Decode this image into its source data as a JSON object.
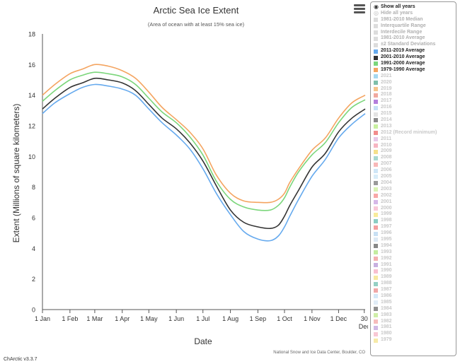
{
  "chart_data": {
    "type": "line",
    "title": "Arctic Sea Ice Extent",
    "subtitle": "(Area of ocean with at least 15% sea ice)",
    "xlabel": "Date",
    "ylabel": "Extent (Millions of square kilometers)",
    "ylim": [
      0,
      18
    ],
    "yticks": [
      0,
      2,
      4,
      6,
      8,
      10,
      12,
      14,
      16,
      18
    ],
    "xlim": [
      1,
      365
    ],
    "x_ticks": [
      {
        "day": 1,
        "label": "1 Jan"
      },
      {
        "day": 32,
        "label": "1 Feb"
      },
      {
        "day": 60,
        "label": "1 Mar"
      },
      {
        "day": 91,
        "label": "1 Apr"
      },
      {
        "day": 121,
        "label": "1 May"
      },
      {
        "day": 152,
        "label": "1 Jun"
      },
      {
        "day": 182,
        "label": "1 Jul"
      },
      {
        "day": 213,
        "label": "1 Aug"
      },
      {
        "day": 244,
        "label": "1 Sep"
      },
      {
        "day": 274,
        "label": "1 Oct"
      },
      {
        "day": 305,
        "label": "1 Nov"
      },
      {
        "day": 335,
        "label": "1 Dec"
      },
      {
        "day": 364,
        "label": "30",
        "label2": "Dec"
      }
    ],
    "grid": false,
    "credit": "National Snow and Ice Data Center, Boulder, CO",
    "series": [
      {
        "name": "1979-1990 Average",
        "color": "#f4a460",
        "x": [
          1,
          15,
          32,
          46,
          60,
          75,
          91,
          106,
          121,
          136,
          152,
          167,
          182,
          197,
          213,
          228,
          244,
          258,
          267,
          274,
          280,
          290,
          305,
          320,
          335,
          350,
          365
        ],
        "y": [
          14.0,
          14.7,
          15.4,
          15.7,
          16.0,
          15.9,
          15.6,
          15.1,
          14.2,
          13.2,
          12.4,
          11.6,
          10.5,
          8.8,
          7.6,
          7.1,
          7.0,
          7.0,
          7.2,
          7.6,
          8.3,
          9.2,
          10.4,
          11.2,
          12.5,
          13.5,
          14.0
        ]
      },
      {
        "name": "1991-2000 Average",
        "color": "#7bd67b",
        "x": [
          1,
          15,
          32,
          46,
          60,
          75,
          91,
          106,
          121,
          136,
          152,
          167,
          182,
          197,
          213,
          228,
          244,
          258,
          267,
          274,
          280,
          290,
          305,
          320,
          335,
          350,
          365
        ],
        "y": [
          13.6,
          14.3,
          15.0,
          15.3,
          15.5,
          15.4,
          15.2,
          14.7,
          13.8,
          12.9,
          12.2,
          11.3,
          10.1,
          8.4,
          7.2,
          6.7,
          6.5,
          6.5,
          6.8,
          7.3,
          8.0,
          9.0,
          10.1,
          10.9,
          12.2,
          13.2,
          13.7
        ]
      },
      {
        "name": "2001-2010 Average",
        "color": "#333333",
        "x": [
          1,
          15,
          32,
          46,
          60,
          75,
          91,
          106,
          121,
          136,
          152,
          167,
          182,
          197,
          213,
          228,
          244,
          258,
          267,
          274,
          280,
          290,
          305,
          320,
          335,
          350,
          365
        ],
        "y": [
          13.1,
          13.8,
          14.5,
          14.8,
          15.1,
          15.0,
          14.8,
          14.3,
          13.4,
          12.5,
          11.8,
          10.9,
          9.7,
          8.1,
          6.5,
          5.7,
          5.4,
          5.3,
          5.5,
          6.1,
          6.8,
          7.8,
          9.3,
          10.2,
          11.6,
          12.5,
          13.1
        ]
      },
      {
        "name": "2011-2019 Average",
        "color": "#66aaee",
        "x": [
          1,
          15,
          32,
          46,
          60,
          75,
          91,
          106,
          121,
          136,
          152,
          167,
          182,
          197,
          213,
          228,
          244,
          258,
          267,
          274,
          280,
          290,
          305,
          320,
          335,
          350,
          365
        ],
        "y": [
          12.8,
          13.5,
          14.1,
          14.5,
          14.7,
          14.6,
          14.4,
          14.0,
          13.1,
          12.2,
          11.4,
          10.5,
          9.2,
          7.6,
          6.2,
          5.1,
          4.6,
          4.5,
          4.8,
          5.4,
          6.1,
          7.2,
          8.7,
          9.8,
          11.2,
          12.1,
          12.8
        ]
      }
    ]
  },
  "ui": {
    "version": "ChArctic v3.3.7",
    "menu_icon": "hamburger-menu-icon"
  },
  "legend": {
    "show_all": "Show all years",
    "hide_all": "Hide all years",
    "items": [
      {
        "label": "1981-2010 Median",
        "color": "#dddddd",
        "style": "gray"
      },
      {
        "label": "Interquartile Range",
        "color": "#dddddd",
        "style": "gray"
      },
      {
        "label": "Interdecile Range",
        "color": "#dddddd",
        "style": "gray"
      },
      {
        "label": "1981-2010 Average",
        "color": "#dddddd",
        "style": "gray"
      },
      {
        "label": "±2 Standard Deviations",
        "color": "#dddddd",
        "style": "gray"
      },
      {
        "label": "2011-2019 Average",
        "color": "#66aaee",
        "style": "bold"
      },
      {
        "label": "2001-2010 Average",
        "color": "#333333",
        "style": "bold"
      },
      {
        "label": "1991-2000 Average",
        "color": "#7bd67b",
        "style": "bold"
      },
      {
        "label": "1979-1990 Average",
        "color": "#f4a460",
        "style": "bold"
      },
      {
        "label": "2021",
        "color": "#a5d8f0",
        "style": "light"
      },
      {
        "label": "2020",
        "color": "#7fbfaa",
        "style": "light"
      },
      {
        "label": "2019",
        "color": "#f6c58c",
        "style": "light"
      },
      {
        "label": "2018",
        "color": "#f1a9a0",
        "style": "light"
      },
      {
        "label": "2017",
        "color": "#b57edc",
        "style": "light"
      },
      {
        "label": "2016",
        "color": "#c7dff5",
        "style": "light"
      },
      {
        "label": "2015",
        "color": "#e3e3e3",
        "style": "light"
      },
      {
        "label": "2014",
        "color": "#8a8a8a",
        "style": "light"
      },
      {
        "label": "2013",
        "color": "#c8f0a0",
        "style": "light"
      },
      {
        "label": "2012 (Record minimum)",
        "color": "#f28c8c",
        "style": "light"
      },
      {
        "label": "2011",
        "color": "#e8c8e8",
        "style": "light"
      },
      {
        "label": "2010",
        "color": "#f7b6c2",
        "style": "light"
      },
      {
        "label": "2009",
        "color": "#f5e08c",
        "style": "light"
      },
      {
        "label": "2008",
        "color": "#a8d8d0",
        "style": "light"
      },
      {
        "label": "2007",
        "color": "#f8b8b8",
        "style": "light"
      },
      {
        "label": "2006",
        "color": "#cfe6f7",
        "style": "light"
      },
      {
        "label": "2005",
        "color": "#d8ecf8",
        "style": "light"
      },
      {
        "label": "2004",
        "color": "#9a9a9a",
        "style": "light"
      },
      {
        "label": "2003",
        "color": "#d9f3b4",
        "style": "light"
      },
      {
        "label": "2002",
        "color": "#f8a8a8",
        "style": "light"
      },
      {
        "label": "2001",
        "color": "#d6b8e8",
        "style": "light"
      },
      {
        "label": "2000",
        "color": "#f8c8d8",
        "style": "light"
      },
      {
        "label": "1999",
        "color": "#f8ec9c",
        "style": "light"
      },
      {
        "label": "1998",
        "color": "#8ccdc4",
        "style": "light"
      },
      {
        "label": "1997",
        "color": "#f4a0a0",
        "style": "light"
      },
      {
        "label": "1996",
        "color": "#c8e0f4",
        "style": "light"
      },
      {
        "label": "1995",
        "color": "#dde9f4",
        "style": "light"
      },
      {
        "label": "1994",
        "color": "#888888",
        "style": "light"
      },
      {
        "label": "1993",
        "color": "#c4eca0",
        "style": "light"
      },
      {
        "label": "1992",
        "color": "#f4b0b0",
        "style": "light"
      },
      {
        "label": "1991",
        "color": "#c8b0e0",
        "style": "light"
      },
      {
        "label": "1990",
        "color": "#f8c0d0",
        "style": "light"
      },
      {
        "label": "1989",
        "color": "#f6e8a0",
        "style": "light"
      },
      {
        "label": "1988",
        "color": "#94d0c4",
        "style": "light"
      },
      {
        "label": "1987",
        "color": "#f0a8a8",
        "style": "light"
      },
      {
        "label": "1986",
        "color": "#d4e8f8",
        "style": "light"
      },
      {
        "label": "1985",
        "color": "#e0ecf6",
        "style": "light"
      },
      {
        "label": "1984",
        "color": "#909090",
        "style": "light"
      },
      {
        "label": "1983",
        "color": "#cfeea8",
        "style": "light"
      },
      {
        "label": "1982",
        "color": "#f6bcbc",
        "style": "light"
      },
      {
        "label": "1981",
        "color": "#d0b8e4",
        "style": "light"
      },
      {
        "label": "1980",
        "color": "#f8c8d4",
        "style": "light"
      },
      {
        "label": "1979",
        "color": "#f6eaa8",
        "style": "light"
      }
    ]
  }
}
